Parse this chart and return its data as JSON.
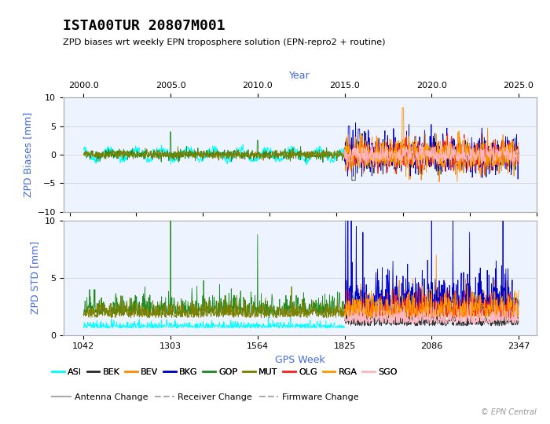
{
  "title": "ISTA00TUR 20807M001",
  "subtitle": "ZPD biases wrt weekly EPN troposphere solution (EPN-repro2 + routine)",
  "xlabel_bottom": "GPS Week",
  "xlabel_top": "Year",
  "ylabel_top": "ZPD Biases [mm]",
  "ylabel_bottom": "ZPD STD [mm]",
  "watermark": "© EPN Central",
  "gps_week_range": [
    981,
    2400
  ],
  "year_ticks": [
    2000.0,
    2005.0,
    2010.0,
    2015.0,
    2020.0,
    2025.0
  ],
  "year_tick_gps": [
    1042,
    1303,
    1564,
    1825,
    2086,
    2347
  ],
  "gps_week_ticks": [
    1042,
    1303,
    1564,
    1825,
    2086,
    2347
  ],
  "bias_ylim": [
    -10,
    10
  ],
  "std_ylim": [
    0,
    10
  ],
  "bias_yticks": [
    -10,
    -5,
    0,
    5,
    10
  ],
  "std_yticks": [
    0,
    5,
    10
  ],
  "colors": {
    "ASI": "#00ffff",
    "BEK": "#2f2f2f",
    "BEV": "#ff8c00",
    "BKG": "#0000cc",
    "GOP": "#228b22",
    "MUT": "#808000",
    "OLG": "#ff2222",
    "RGA": "#ff9900",
    "SGO": "#ffb6c1"
  },
  "legend_entries": [
    "ASI",
    "BEK",
    "BEV",
    "BKG",
    "GOP",
    "MUT",
    "OLG",
    "RGA",
    "SGO"
  ],
  "antenna_change_color": "#aaaaaa",
  "receiver_change_color": "#aaaaaa",
  "firmware_change_color": "#aaaaaa",
  "background_color": "#ffffff",
  "plot_bg_color": "#eef4ff",
  "grid_color": "#cccccc",
  "axis_label_color": "#4169e1",
  "title_color": "#000000",
  "subtitle_color": "#000000"
}
